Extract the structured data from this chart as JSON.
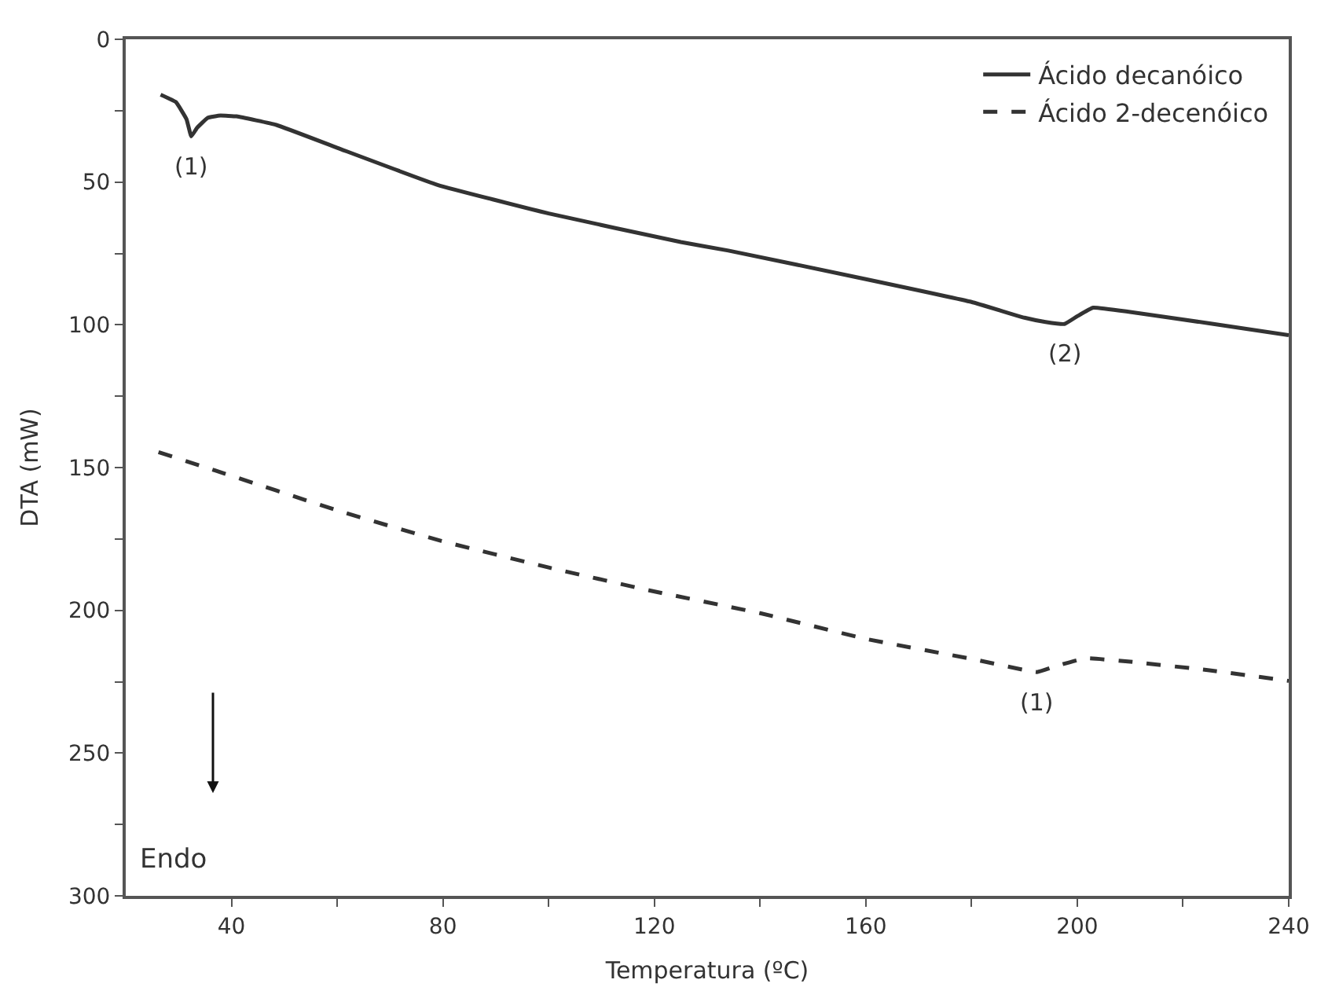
{
  "chart_data": {
    "type": "line",
    "xlabel": "Temperatura (ºC)",
    "ylabel": "DTA (mW)",
    "series": [
      {
        "name": "Ácido decanóico",
        "color": "#333333",
        "line_style": "solid",
        "x": [
          26.6,
          29.5,
          31.5,
          32.4,
          33.5,
          35.5,
          37.9,
          41,
          48.5,
          60,
          79,
          100,
          125,
          134,
          160,
          180,
          190,
          194,
          197.6,
          200,
          203,
          210,
          225,
          240
        ],
        "values": [
          19.4,
          22,
          28,
          34,
          31,
          27.5,
          26.7,
          27,
          30,
          38,
          51,
          61,
          71,
          74,
          84,
          92,
          97.5,
          99,
          99.7,
          97,
          94,
          95.5,
          99.5,
          103.6
        ]
      },
      {
        "name": "Ácido 2-decenóico",
        "color": "#333333",
        "line_style": "dashed",
        "x": [
          26.2,
          36.9,
          60,
          79.7,
          100,
          119,
          140,
          160,
          180,
          192.4,
          196,
          201.5,
          210,
          225,
          240
        ],
        "values": [
          144.6,
          151,
          165,
          175.7,
          185,
          193,
          201,
          210,
          217,
          221.6,
          219.5,
          216.8,
          218,
          221,
          224.7
        ]
      }
    ],
    "xlim": [
      20,
      240
    ],
    "ylim": [
      300,
      0
    ],
    "xticks": [
      40,
      {
        "value": 60,
        "label": null
      },
      80,
      {
        "value": 100,
        "label": null
      },
      120,
      {
        "value": 140,
        "label": null
      },
      160,
      {
        "value": 180,
        "label": null
      },
      200,
      {
        "value": 220,
        "label": null
      },
      240
    ],
    "yticks": [
      0,
      {
        "value": 25,
        "label": null
      },
      50,
      {
        "value": 75,
        "label": null
      },
      100,
      {
        "value": 125,
        "label": null
      },
      150,
      {
        "value": 175,
        "label": null
      },
      200,
      {
        "value": 225,
        "label": null
      },
      250,
      {
        "value": 275,
        "label": null
      },
      300
    ],
    "annotations": [
      {
        "text": "(1)",
        "x": 32.4,
        "y": 34
      },
      {
        "text": "(2)",
        "x": 197.6,
        "y": 99.7
      },
      {
        "text": "(1)",
        "x": 192.4,
        "y": 221.6
      },
      "Endo"
    ],
    "legend": "top right"
  }
}
